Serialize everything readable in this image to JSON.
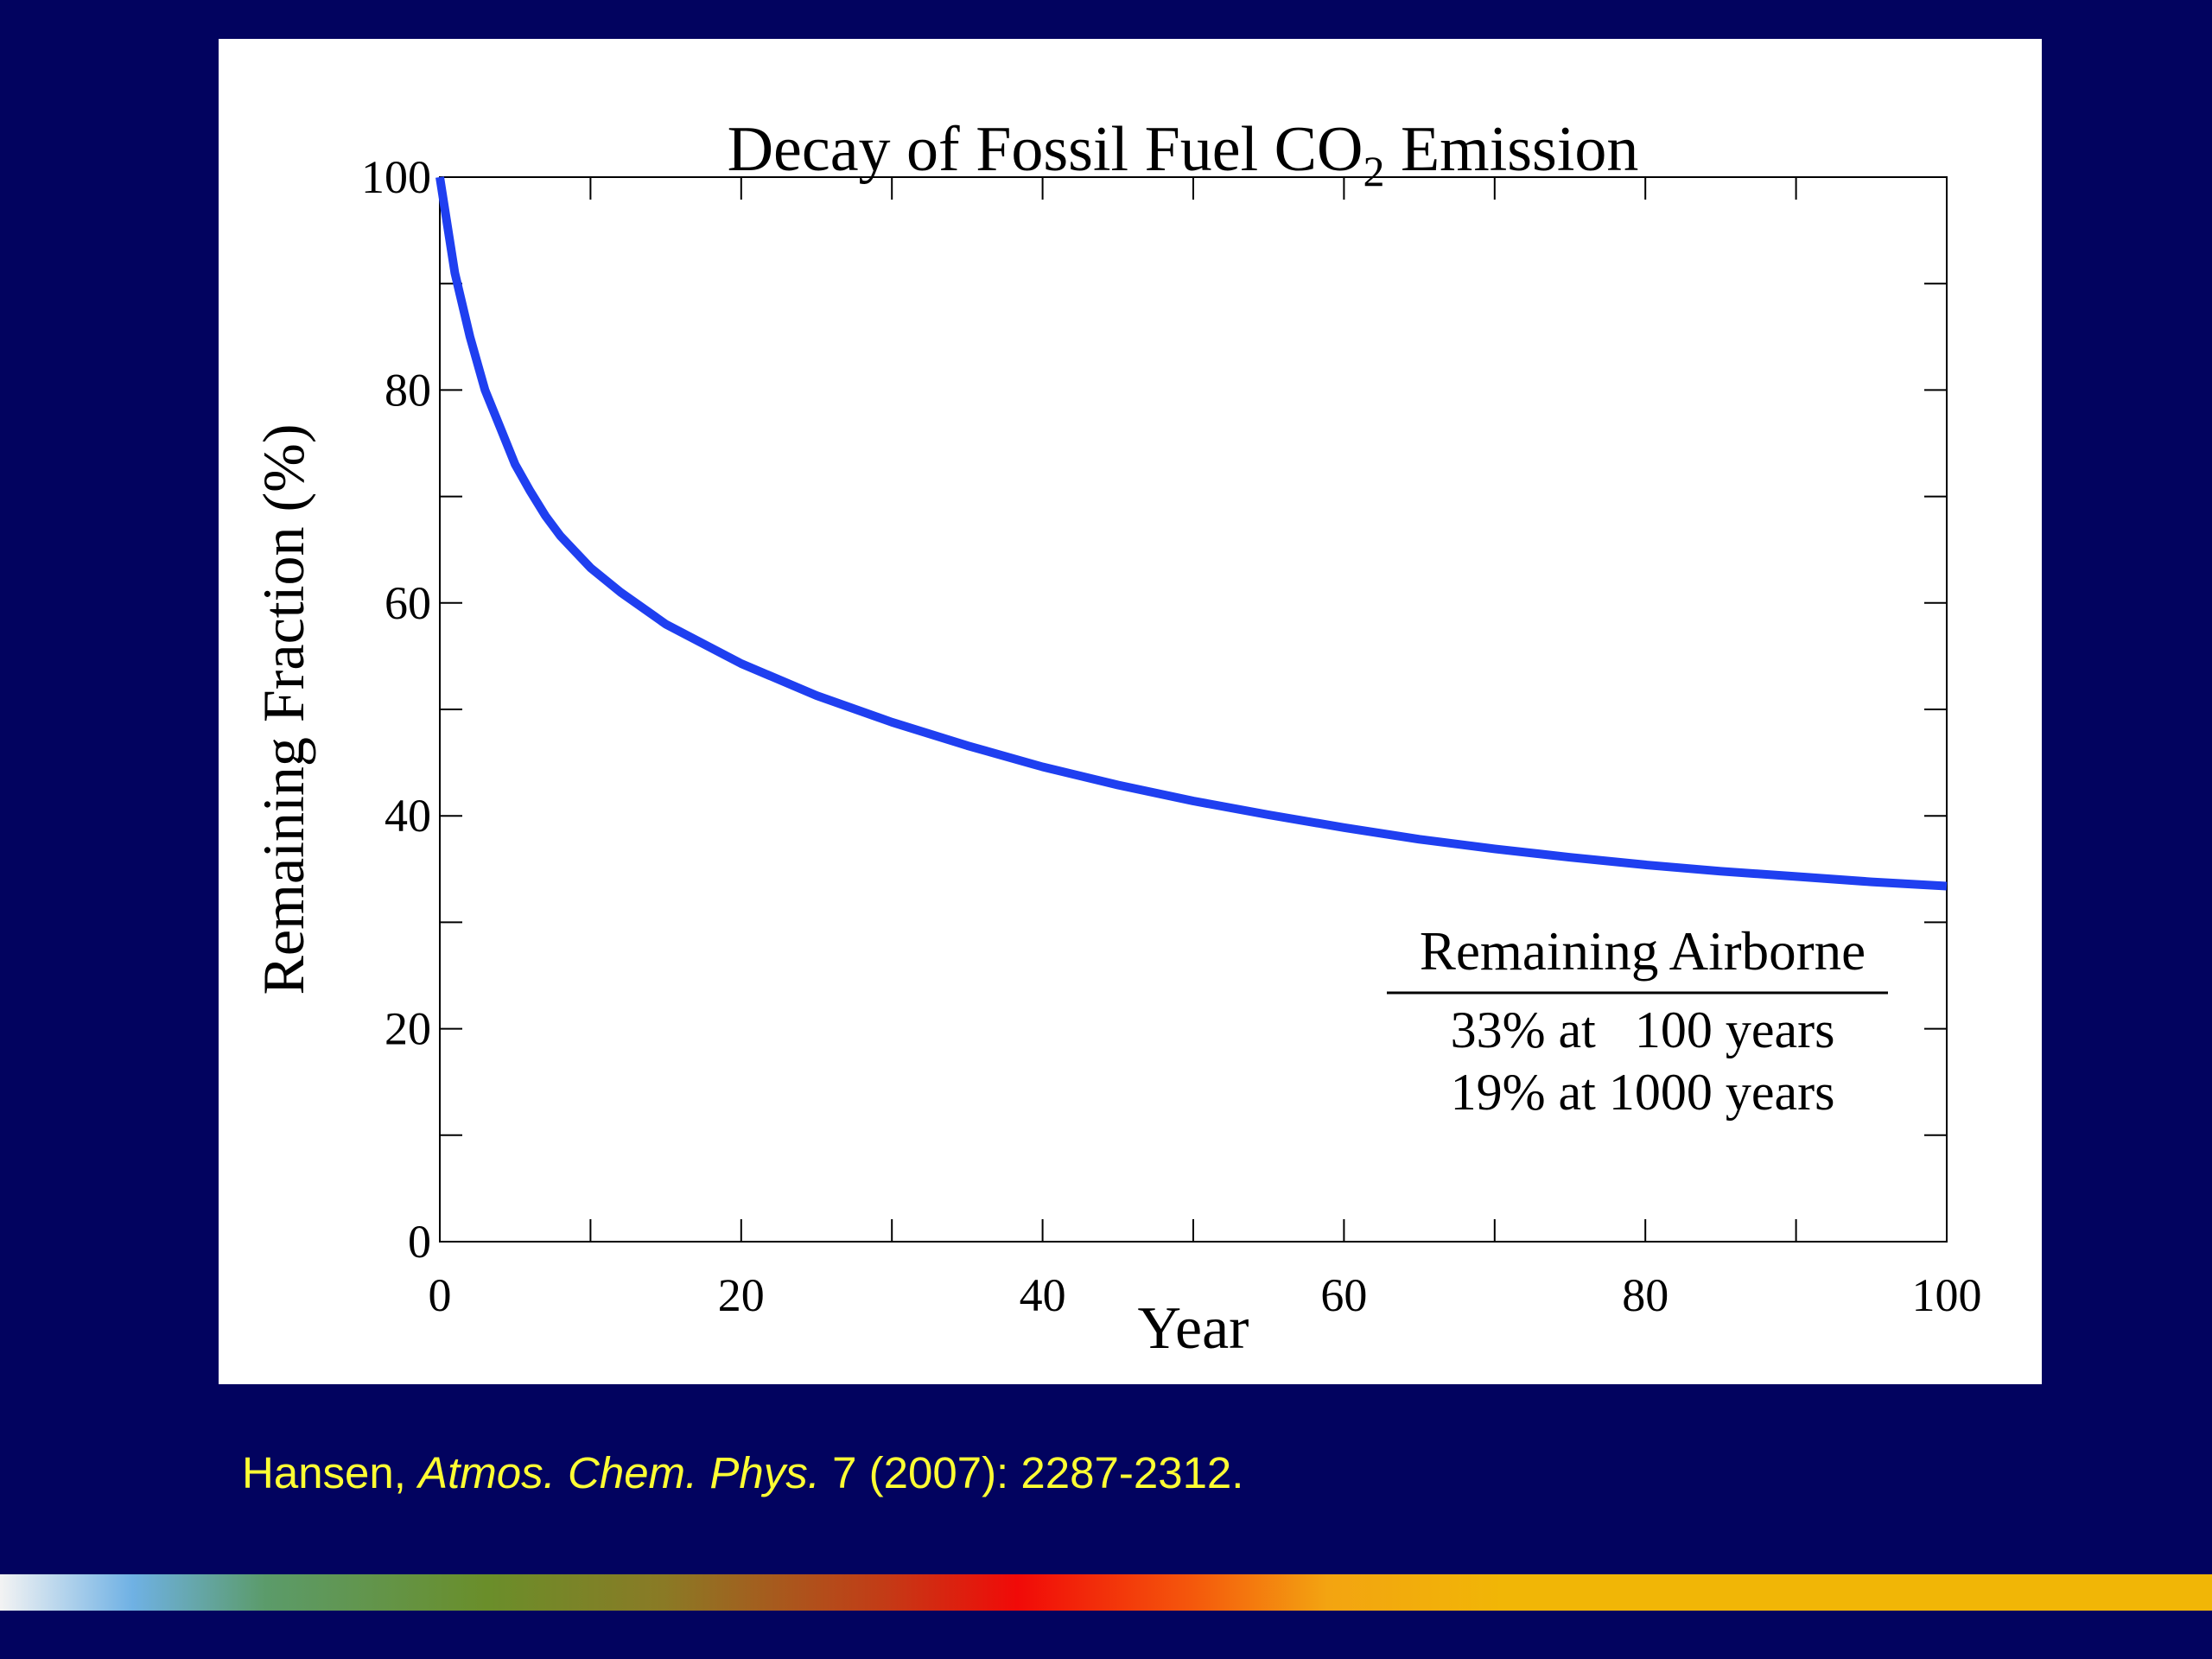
{
  "colors": {
    "slide_background": "#02035f",
    "panel_background": "#ffffff",
    "curve": "#1f3ff0",
    "citation_text": "#ffff33"
  },
  "citation": {
    "prefix": "Hansen, ",
    "journal": "Atmos. Chem. Phys.",
    "suffix": " 7 (2007): 2287-2312."
  },
  "chart_data": {
    "type": "line",
    "title": "Decay of Fossil Fuel CO",
    "title_subscript": "2",
    "title_suffix": " Emission",
    "xlabel": "Year",
    "ylabel": "Remaining Fraction (%)",
    "xlim": [
      0,
      100
    ],
    "ylim": [
      0,
      100
    ],
    "x_ticks": [
      0,
      20,
      40,
      60,
      80,
      100
    ],
    "y_ticks": [
      0,
      20,
      40,
      60,
      80,
      100
    ],
    "x_minor_step": 10,
    "y_minor_step": 10,
    "grid": false,
    "series": [
      {
        "x": [
          0,
          1,
          2,
          3,
          4,
          5,
          6,
          7,
          8,
          10,
          12,
          15,
          20,
          25,
          30,
          35,
          40,
          45,
          50,
          55,
          60,
          65,
          70,
          75,
          80,
          85,
          90,
          95,
          100
        ],
        "y": [
          100,
          91,
          85,
          80,
          76.5,
          73,
          70.5,
          68.2,
          66.3,
          63.3,
          61,
          58,
          54.3,
          51.3,
          48.8,
          46.6,
          44.6,
          42.9,
          41.4,
          40.1,
          38.9,
          37.8,
          36.9,
          36.1,
          35.4,
          34.8,
          34.3,
          33.8,
          33.4
        ]
      }
    ],
    "annotation": {
      "heading": "Remaining Airborne",
      "lines": [
        "33% at   100 years",
        "19% at 1000 years"
      ]
    }
  }
}
